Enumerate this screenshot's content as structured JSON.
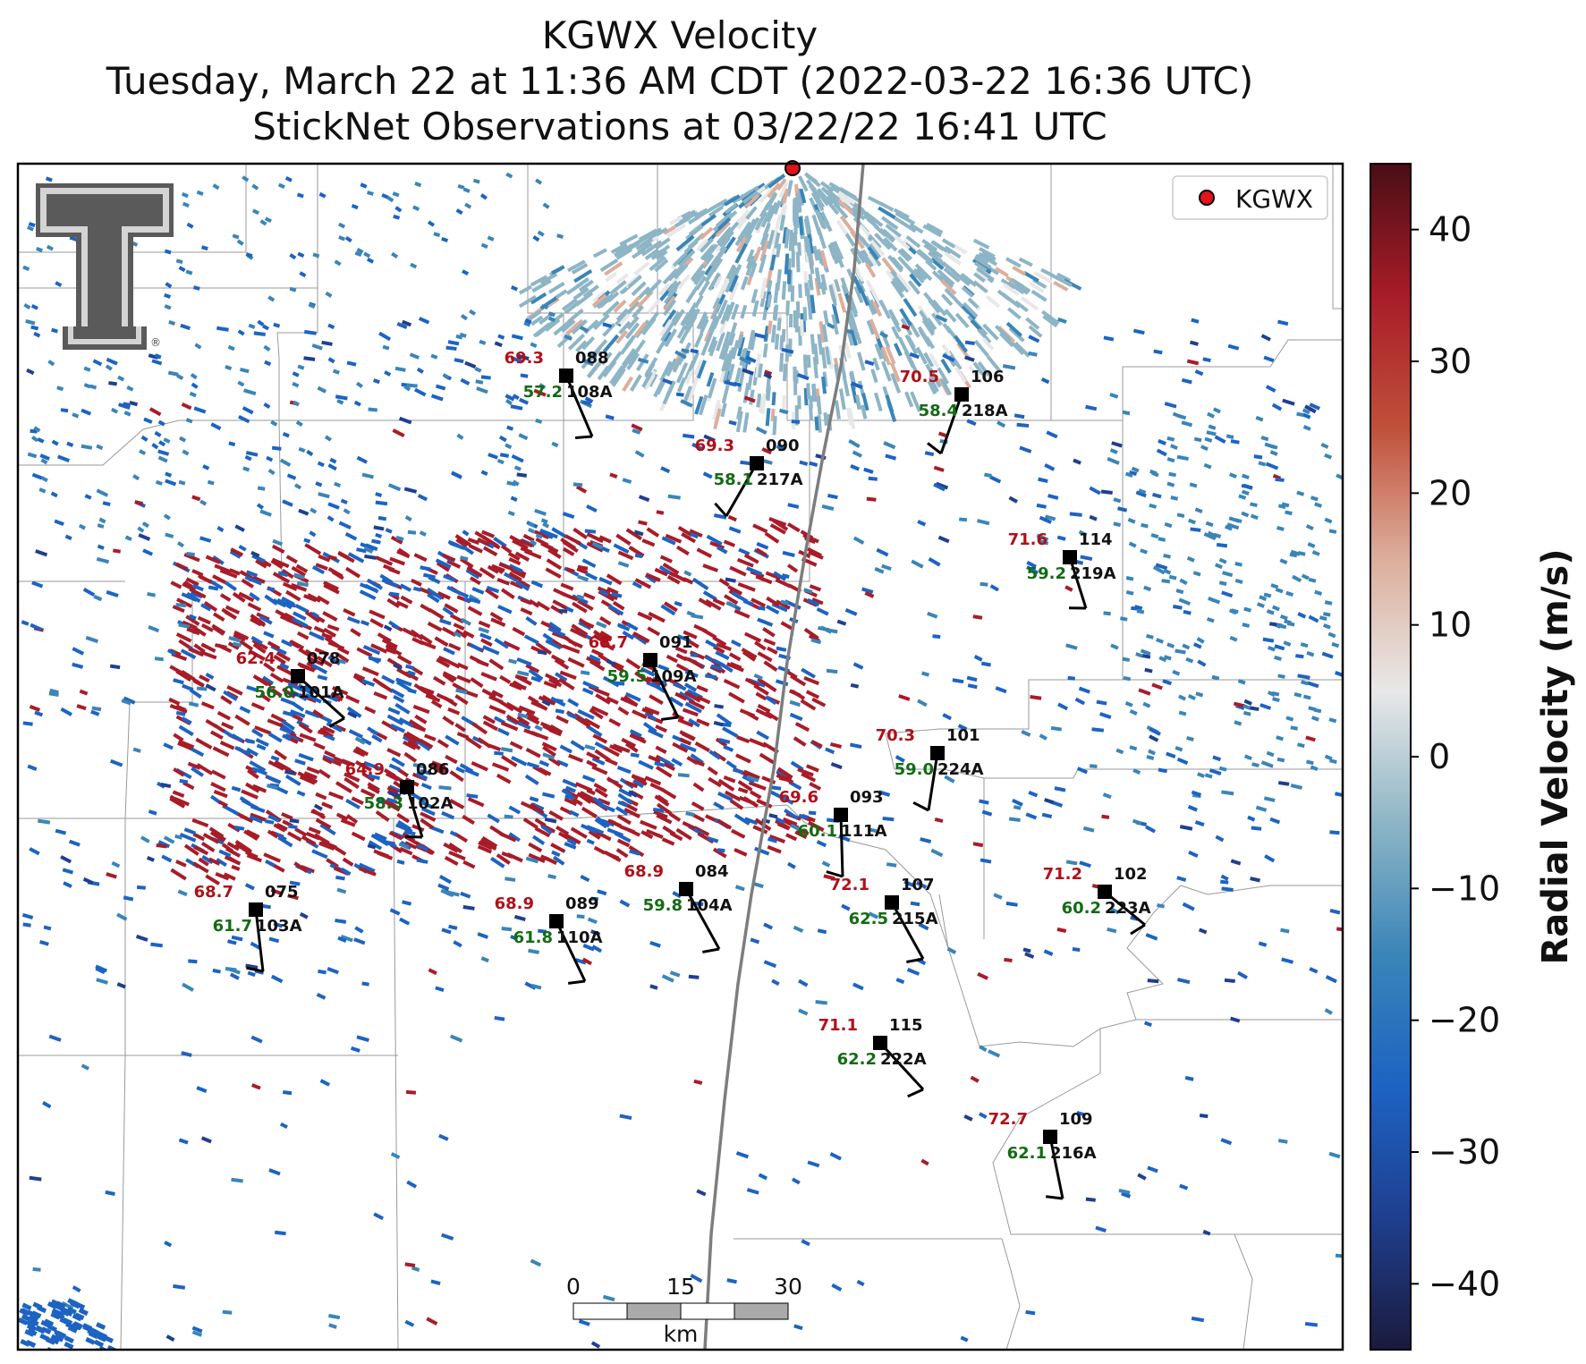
{
  "title": {
    "line1": "KGWX Velocity",
    "line2": "Tuesday, March 22 at 11:36 AM CDT (2022-03-22 16:36 UTC)",
    "line3": "StickNet Observations at 03/22/22 16:41 UTC"
  },
  "legend": {
    "radar_label": "KGWX",
    "marker_color": "#e0141a"
  },
  "logo": {
    "text": "TT",
    "mark": "®",
    "icon": "texas-tech-double-t-logo"
  },
  "colorbar": {
    "label": "Radial Velocity (m/s)",
    "range": [
      -45,
      45
    ],
    "ticks": [
      "40",
      "30",
      "20",
      "10",
      "0",
      "−10",
      "−20",
      "−30",
      "−40"
    ],
    "tick_values": [
      40,
      30,
      20,
      10,
      0,
      -10,
      -20,
      -30,
      -40
    ],
    "colors": [
      "#1b1a3d",
      "#1f3f8f",
      "#1d63c2",
      "#3a85b8",
      "#8db5c6",
      "#e8e8e8",
      "#dcae9c",
      "#c0503a",
      "#a81c28",
      "#4a0e16"
    ]
  },
  "scalebar": {
    "ticks": [
      "0",
      "15",
      "30"
    ],
    "unit": "km"
  },
  "stations": [
    {
      "id": "108A",
      "num": "088",
      "temp": "69.3",
      "dew": "57.2"
    },
    {
      "id": "218A",
      "num": "106",
      "temp": "70.5",
      "dew": "58.4"
    },
    {
      "id": "217A",
      "num": "090",
      "temp": "69.3",
      "dew": "58.1"
    },
    {
      "id": "219A",
      "num": "114",
      "temp": "71.6",
      "dew": "59.2"
    },
    {
      "id": "101A",
      "num": "078",
      "temp": "62.4",
      "dew": "56.0"
    },
    {
      "id": "109A",
      "num": "091",
      "temp": "68.7",
      "dew": "59.5"
    },
    {
      "id": "224A",
      "num": "101",
      "temp": "70.3",
      "dew": "59.0"
    },
    {
      "id": "102A",
      "num": "086",
      "temp": "64.9",
      "dew": "58.3"
    },
    {
      "id": "111A",
      "num": "093",
      "temp": "69.6",
      "dew": "60.1"
    },
    {
      "id": "104A",
      "num": "084",
      "temp": "68.9",
      "dew": "59.8"
    },
    {
      "id": "215A",
      "num": "107",
      "temp": "72.1",
      "dew": "62.5"
    },
    {
      "id": "223A",
      "num": "102",
      "temp": "71.2",
      "dew": "60.2"
    },
    {
      "id": "103A",
      "num": "075",
      "temp": "68.7",
      "dew": "61.7"
    },
    {
      "id": "110A",
      "num": "089",
      "temp": "68.9",
      "dew": "61.8"
    },
    {
      "id": "222A",
      "num": "115",
      "temp": "71.1",
      "dew": "62.2"
    },
    {
      "id": "216A",
      "num": "109",
      "temp": "72.7",
      "dew": "62.1"
    }
  ]
}
